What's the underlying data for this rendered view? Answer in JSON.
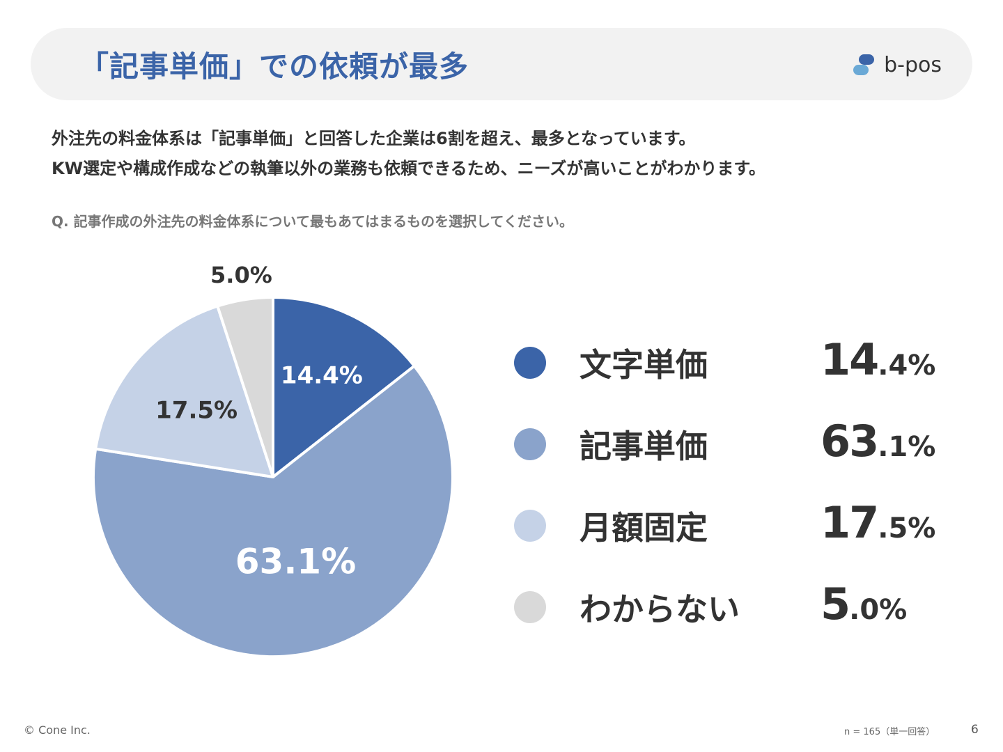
{
  "header": {
    "title": "「記事単価」での依頼が最多",
    "logo_text": "b-pos"
  },
  "description": {
    "line1": "外注先の料金体系は「記事単価」と回答した企業は6割を超え、最多となっています。",
    "line2": "KW選定や構成作成などの執筆以外の業務も依頼できるため、ニーズが高いことがわかります。"
  },
  "question": "Q. 記事作成の外注先の料金体系について最もあてはまるものを選択してください。",
  "chart_data": {
    "type": "pie",
    "categories": [
      "文字単価",
      "記事単価",
      "月額固定",
      "わからない"
    ],
    "values": [
      14.4,
      63.1,
      17.5,
      5.0
    ],
    "labels": [
      "14.4%",
      "63.1%",
      "17.5%",
      "5.0%"
    ],
    "colors": [
      "#3b64a8",
      "#8aa3cb",
      "#c5d2e7",
      "#d9d9d9"
    ],
    "label_colors": [
      "#ffffff",
      "#ffffff",
      "#333333",
      "#333333"
    ],
    "start_angle_deg": 0,
    "direction": "clockwise",
    "legend_position": "right"
  },
  "legend": [
    {
      "label": "文字単価",
      "value_int": "14",
      "value_dec": ".4%",
      "color": "#3b64a8"
    },
    {
      "label": "記事単価",
      "value_int": "63",
      "value_dec": ".1%",
      "color": "#8aa3cb"
    },
    {
      "label": "月額固定",
      "value_int": "17",
      "value_dec": ".5%",
      "color": "#c5d2e7"
    },
    {
      "label": "わからない",
      "value_int": "5",
      "value_dec": ".0%",
      "color": "#d9d9d9"
    }
  ],
  "footer": {
    "copyright": "© Cone Inc.",
    "note": "n = 165（単一回答）",
    "page": "6"
  }
}
